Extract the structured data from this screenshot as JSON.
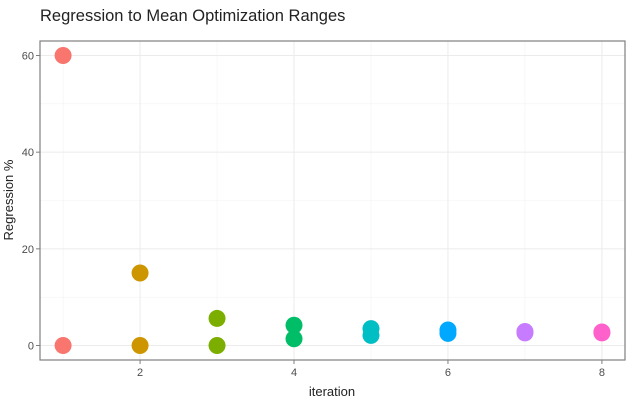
{
  "chart_data": {
    "type": "scatter",
    "title": "Regression to Mean Optimization Ranges",
    "xlabel": "iteration",
    "ylabel": "Regression %",
    "xlim": [
      0.7,
      8.3
    ],
    "ylim": [
      -3,
      63
    ],
    "x_ticks": [
      2,
      4,
      6,
      8
    ],
    "y_ticks": [
      0,
      20,
      40,
      60
    ],
    "grid": true,
    "legend": "none",
    "series": [
      {
        "color": "#F8766D",
        "points": [
          [
            1,
            60
          ],
          [
            1,
            0
          ]
        ]
      },
      {
        "color": "#CD9600",
        "points": [
          [
            2,
            15
          ],
          [
            2,
            0
          ]
        ]
      },
      {
        "color": "#7CAE00",
        "points": [
          [
            3,
            5.6
          ],
          [
            3,
            0
          ]
        ]
      },
      {
        "color": "#00BE67",
        "points": [
          [
            4,
            4.2
          ],
          [
            4,
            1.4
          ]
        ]
      },
      {
        "color": "#00BFC4",
        "points": [
          [
            5,
            3.5
          ],
          [
            5,
            2.1
          ]
        ]
      },
      {
        "color": "#00A9FF",
        "points": [
          [
            6,
            3.2
          ],
          [
            6,
            2.5
          ]
        ]
      },
      {
        "color": "#C77CFF",
        "points": [
          [
            7,
            2.9
          ],
          [
            7,
            2.6
          ]
        ]
      },
      {
        "color": "#FF61CC",
        "points": [
          [
            8,
            2.8
          ],
          [
            8,
            2.6
          ]
        ]
      }
    ]
  }
}
